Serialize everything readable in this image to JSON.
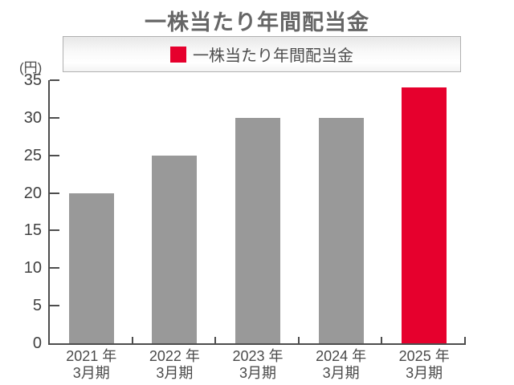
{
  "title": "一株当たり年間配当金",
  "legend": {
    "label": "一株当たり年間配当金",
    "swatch_color": "#e6002d"
  },
  "unit_label": "(円)",
  "colors": {
    "bar_default": "#999999",
    "bar_highlight": "#e6002d",
    "axis": "#4d4d4d"
  },
  "chart_data": {
    "type": "bar",
    "title": "一株当たり年間配当金",
    "ylabel": "(円)",
    "categories": [
      [
        "2021 年",
        "3月期"
      ],
      [
        "2022 年",
        "3月期"
      ],
      [
        "2023 年",
        "3月期"
      ],
      [
        "2024 年",
        "3月期"
      ],
      [
        "2025 年",
        "3月期"
      ]
    ],
    "values": [
      20,
      25,
      30,
      30,
      34
    ],
    "bar_colors": [
      "#999999",
      "#999999",
      "#999999",
      "#999999",
      "#e6002d"
    ],
    "ylim": [
      0,
      35
    ],
    "yticks": [
      0,
      5,
      10,
      15,
      20,
      25,
      30,
      35
    ],
    "grid": false,
    "legend_position": "top",
    "legend_entries": [
      "一株当たり年間配当金"
    ]
  }
}
